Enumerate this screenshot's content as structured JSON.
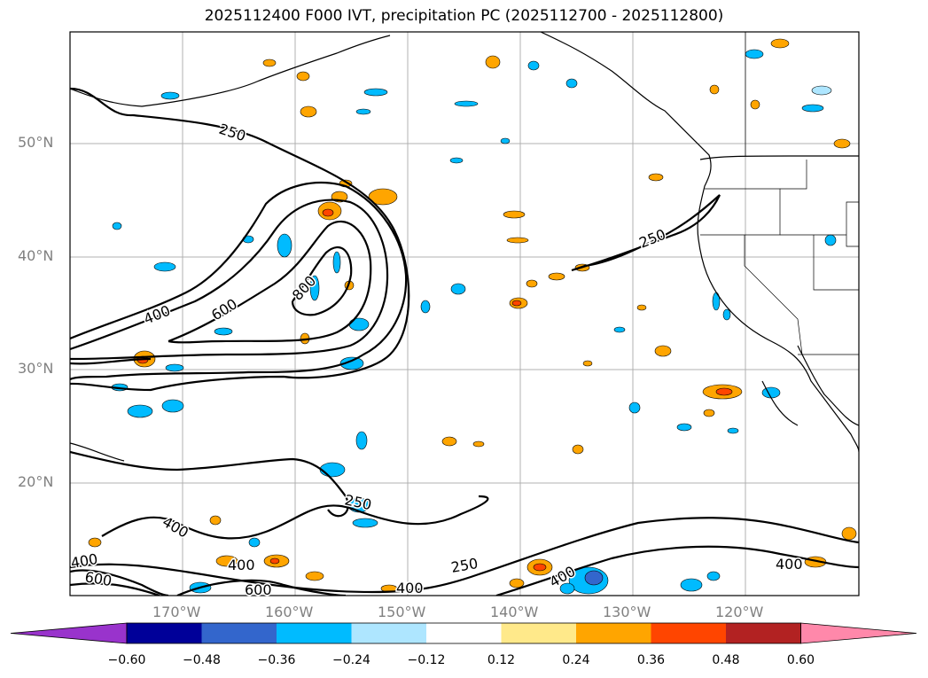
{
  "title": "2025112400 F000 IVT, precipitation PC (2025112700 - 2025112800)",
  "lat_labels": [
    "50°N",
    "40°N",
    "30°N",
    "20°N"
  ],
  "lon_labels": [
    "170°W",
    "160°W",
    "150°W",
    "140°W",
    "130°W",
    "120°W"
  ],
  "contour_labels": {
    "c250_north": "250",
    "c250_coast": "250",
    "c250_south": "250",
    "c250_south2": "250",
    "c400_west": "400",
    "c400_sw1": "400",
    "c400_sw2": "400",
    "c400_s1": "400",
    "c400_s2": "400",
    "c400_s3": "400",
    "c400_e": "400",
    "c600_core": "600",
    "c600_sw": "600",
    "c600_s": "600",
    "c800_core": "800"
  },
  "colorbar": {
    "ticks": [
      "−0.60",
      "−0.48",
      "−0.36",
      "−0.24",
      "−0.12",
      "0.12",
      "0.24",
      "0.36",
      "0.48",
      "0.60"
    ],
    "colors": [
      "#9933cc",
      "#000099",
      "#3366cc",
      "#00bbff",
      "#aee6ff",
      "#ffffff",
      "#ffe98a",
      "#ffa500",
      "#ff4500",
      "#b22222",
      "#ff88aa"
    ]
  }
}
